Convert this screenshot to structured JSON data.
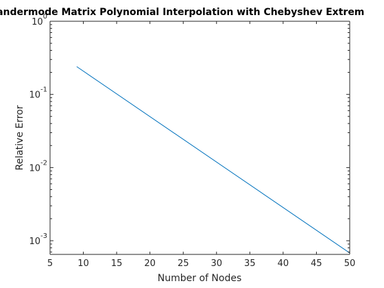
{
  "chart_data": {
    "type": "line",
    "title": "Vandermode Matrix Polynomial Interpolation with Chebyshev Extrem",
    "xlabel": "Number of Nodes",
    "ylabel": "Relative Error",
    "x_scale": "linear",
    "y_scale": "log",
    "xlim": [
      5,
      50
    ],
    "ylim": [
      0.00065,
      1
    ],
    "x_ticks": [
      "5",
      "10",
      "15",
      "20",
      "25",
      "30",
      "35",
      "40",
      "45",
      "50"
    ],
    "y_ticks": [
      {
        "value": 0.001,
        "base": "10",
        "exp": "-3"
      },
      {
        "value": 0.01,
        "base": "10",
        "exp": "-2"
      },
      {
        "value": 0.1,
        "base": "10",
        "exp": "-1"
      },
      {
        "value": 1,
        "base": "10",
        "exp": "0"
      }
    ],
    "grid": false,
    "series": [
      {
        "color": "#0072BD",
        "x": [
          9,
          50
        ],
        "y": [
          0.24,
          0.00068
        ]
      }
    ]
  }
}
